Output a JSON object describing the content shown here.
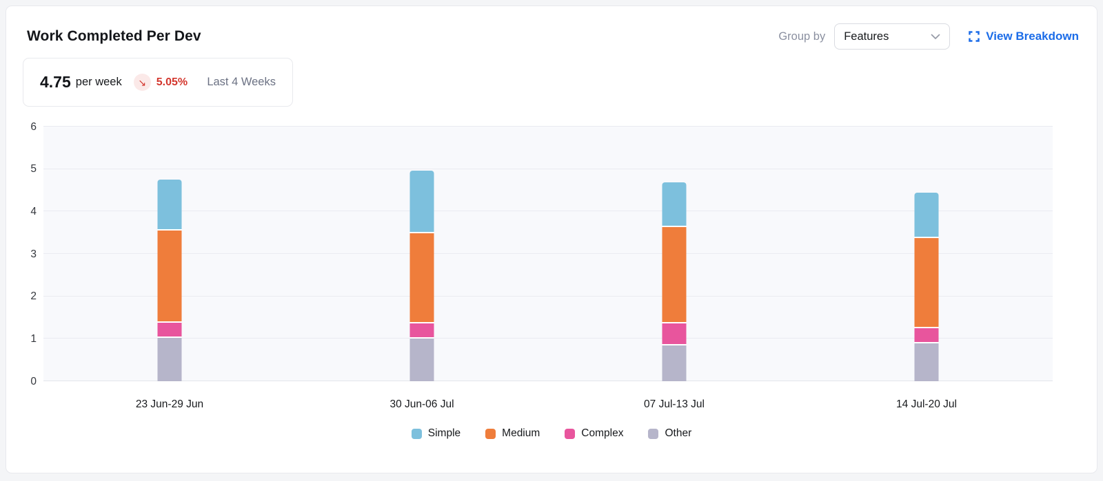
{
  "header": {
    "title": "Work Completed Per Dev",
    "group_by_label": "Group by",
    "group_by_value": "Features",
    "view_breakdown_label": "View Breakdown"
  },
  "stats": {
    "value": "4.75",
    "unit": "per week",
    "trend_glyph": "↘",
    "delta": "5.05%",
    "period": "Last 4 Weeks"
  },
  "icons": {
    "view_breakdown": "expand-icon",
    "dropdown": "chevron-down-icon",
    "trend": "arrow-down-right-icon"
  },
  "colors": {
    "link_blue": "#1b6ce8",
    "delta_red": "#d3362d",
    "delta_badge_bg": "#fbe9e8",
    "plot_bg": "#f8f9fc",
    "simple": "#7dc0dd",
    "medium": "#ef7d3b",
    "complex": "#e8559d",
    "other": "#b6b5ca"
  },
  "chart_data": {
    "type": "bar",
    "stacked": true,
    "title": "Work Completed Per Dev",
    "categories": [
      "23 Jun-29 Jun",
      "30 Jun-06 Jul",
      "07 Jul-13 Jul",
      "14 Jul-20 Jul"
    ],
    "series": [
      {
        "name": "Simple",
        "color": "#7dc0dd",
        "values": [
          1.17,
          1.44,
          1.02,
          1.04
        ]
      },
      {
        "name": "Medium",
        "color": "#ef7d3b",
        "values": [
          2.17,
          2.12,
          2.26,
          2.13
        ]
      },
      {
        "name": "Complex",
        "color": "#e8559d",
        "values": [
          0.36,
          0.37,
          0.52,
          0.35
        ]
      },
      {
        "name": "Other",
        "color": "#b6b5ca",
        "values": [
          1.05,
          1.03,
          0.88,
          0.93
        ]
      }
    ],
    "stack_order_bottom_to_top": [
      "Other",
      "Complex",
      "Medium",
      "Simple"
    ],
    "legend_order": [
      "Simple",
      "Medium",
      "Complex",
      "Other"
    ],
    "legend_position": "bottom",
    "xlabel": "",
    "ylabel": "",
    "ylim": [
      0,
      6
    ],
    "yticks": [
      0,
      1,
      2,
      3,
      4,
      5,
      6
    ],
    "grid": true
  }
}
